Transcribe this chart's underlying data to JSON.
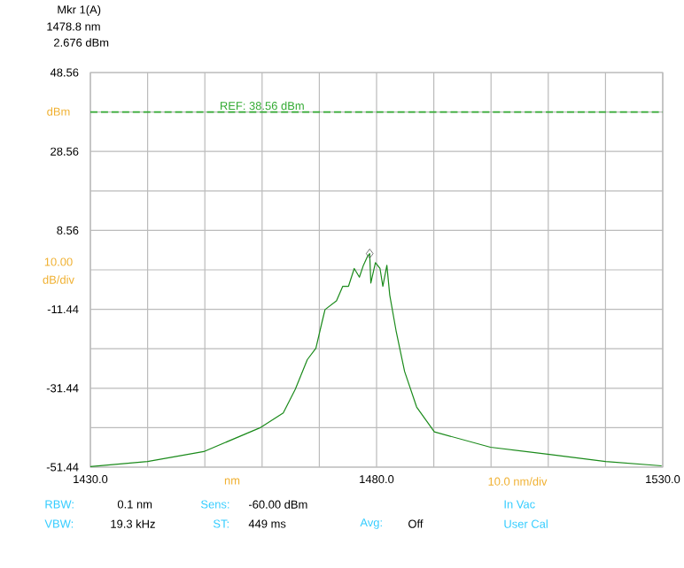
{
  "chart_data": {
    "type": "line",
    "xlim": [
      1430,
      1530
    ],
    "ylim": [
      -51.44,
      48.56
    ],
    "xticks": [
      {
        "value": 1430,
        "label": "1430.0"
      },
      {
        "value": 1440,
        "label": null
      },
      {
        "value": 1450,
        "label": null
      },
      {
        "value": 1460,
        "label": null
      },
      {
        "value": 1470,
        "label": null
      },
      {
        "value": 1480,
        "label": "1480.0"
      },
      {
        "value": 1490,
        "label": null
      },
      {
        "value": 1500,
        "label": null
      },
      {
        "value": 1510,
        "label": null
      },
      {
        "value": 1520,
        "label": null
      },
      {
        "value": 1530,
        "label": "1530.0"
      }
    ],
    "yticks": [
      -51.44,
      {
        "value": -41.44,
        "label": null
      },
      -31.44,
      {
        "value": -21.44,
        "label": null
      },
      -11.44,
      {
        "value": -1.44,
        "label": null
      },
      8.56,
      {
        "value": 18.56,
        "label": null
      },
      28.56,
      {
        "value": 38.56,
        "label": null
      },
      48.56
    ],
    "grid": true,
    "series": [
      {
        "color": "#1a8a1a",
        "x": [
          1430,
          1440,
          1449.8,
          1459.6,
          1463.7,
          1465.8,
          1467.9,
          1469.4,
          1470.5,
          1471.0,
          1473.0,
          1474.1,
          1475.1,
          1476.1,
          1477.0,
          1477.7,
          1478.4,
          1478.8,
          1479.0,
          1479.8,
          1480.6,
          1481.1,
          1481.8,
          1482.3,
          1483.4,
          1484.9,
          1487.0,
          1490.1,
          1499.9,
          1510.2,
          1520,
          1529.8
        ],
        "values": [
          -51.3,
          -50.0,
          -47.5,
          -41.5,
          -37.7,
          -31.7,
          -24.2,
          -21.3,
          -14.5,
          -11.5,
          -9.3,
          -5.6,
          -5.6,
          -1.1,
          -3.3,
          -0.3,
          1.9,
          2.676,
          -4.8,
          0.4,
          -1.1,
          -5.6,
          -0.3,
          -7.8,
          -16.8,
          -27.2,
          -36.2,
          -42.5,
          -46.4,
          -48.2,
          -50.0,
          -51.1
        ]
      },
      {
        "type": "scatter",
        "marker": "diamond",
        "color": "#555555",
        "x": [
          1478.8
        ],
        "values": [
          2.676
        ]
      }
    ],
    "ref_lines": [
      {
        "axis": "y",
        "value": 38.56,
        "label": "REF: 38.56 dBm",
        "color": "#33aa33",
        "line_style": "dashed"
      }
    ],
    "annotations": [
      "Mkr 1(A)",
      "1478.8 nm",
      "2.676 dBm",
      "dBm",
      "10.00",
      "dB/div",
      "nm",
      "10.0 nm/div",
      "RBW:",
      "0.1 nm",
      "Sens:",
      "-60.00 dBm",
      "In Vac",
      "VBW:",
      "19.3 kHz",
      "ST:",
      "449 ms",
      "Avg:",
      "Off",
      "User Cal"
    ]
  }
}
